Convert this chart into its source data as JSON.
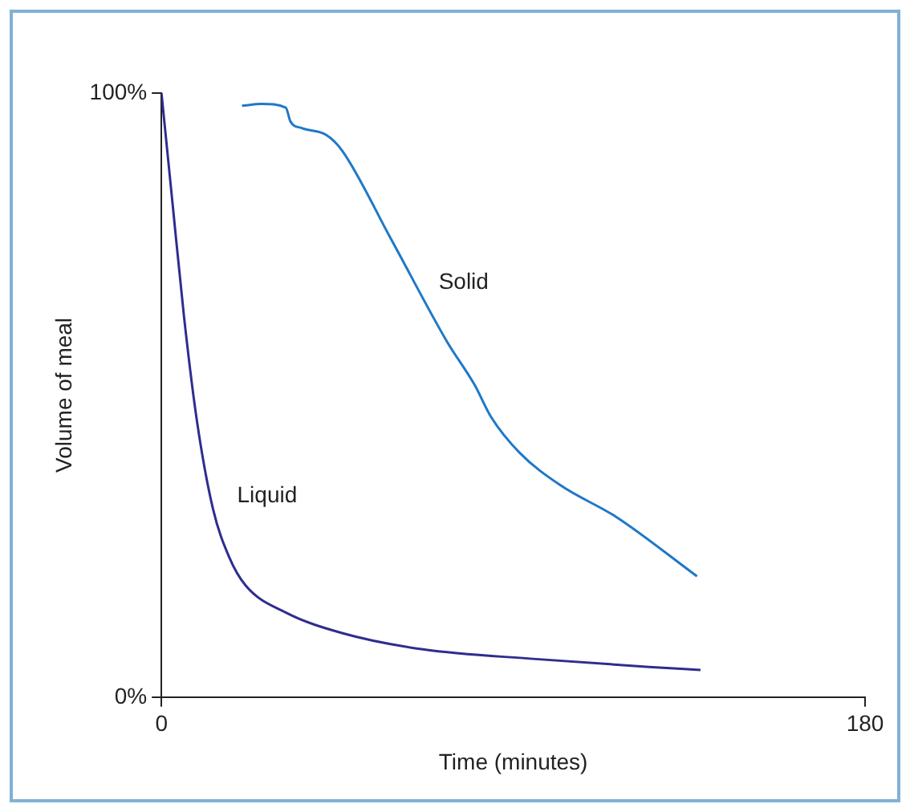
{
  "chart_data": {
    "type": "line",
    "xlabel": "Time (minutes)",
    "ylabel": "Volume of meal",
    "xlim": [
      0,
      180
    ],
    "xticks": [
      0,
      180
    ],
    "ylim": [
      0,
      100
    ],
    "yticks": [
      {
        "value": 0,
        "label": "0%"
      },
      {
        "value": 100,
        "label": "100%"
      }
    ],
    "grid": false,
    "legend": false,
    "marker": "none",
    "line_style": "solid",
    "series": [
      {
        "name": "Solid",
        "color": "#1f78c8",
        "x": [
          20.6,
          25.6,
          31.8,
          33,
          35.9,
          42.1,
          46.2,
          58.6,
          73.1,
          80.1,
          84.3,
          91.7,
          102,
          116.4,
          137
        ],
        "values": [
          97.9,
          98.2,
          97.6,
          95.3,
          94.2,
          93.1,
          90.5,
          76,
          58.8,
          51.7,
          46.4,
          40.4,
          35.1,
          29.8,
          20
        ]
      },
      {
        "name": "Liquid",
        "color": "#2e2d8f",
        "x": [
          0,
          2.9,
          5.8,
          9.1,
          13.2,
          17.3,
          21.5,
          31.8,
          46.2,
          66.9,
          95.8,
          124.7,
          137.9
        ],
        "values": [
          100,
          81.3,
          62.8,
          45.6,
          31.1,
          23.2,
          18.5,
          14,
          10.6,
          7.9,
          6.3,
          5,
          4.5
        ]
      }
    ]
  }
}
